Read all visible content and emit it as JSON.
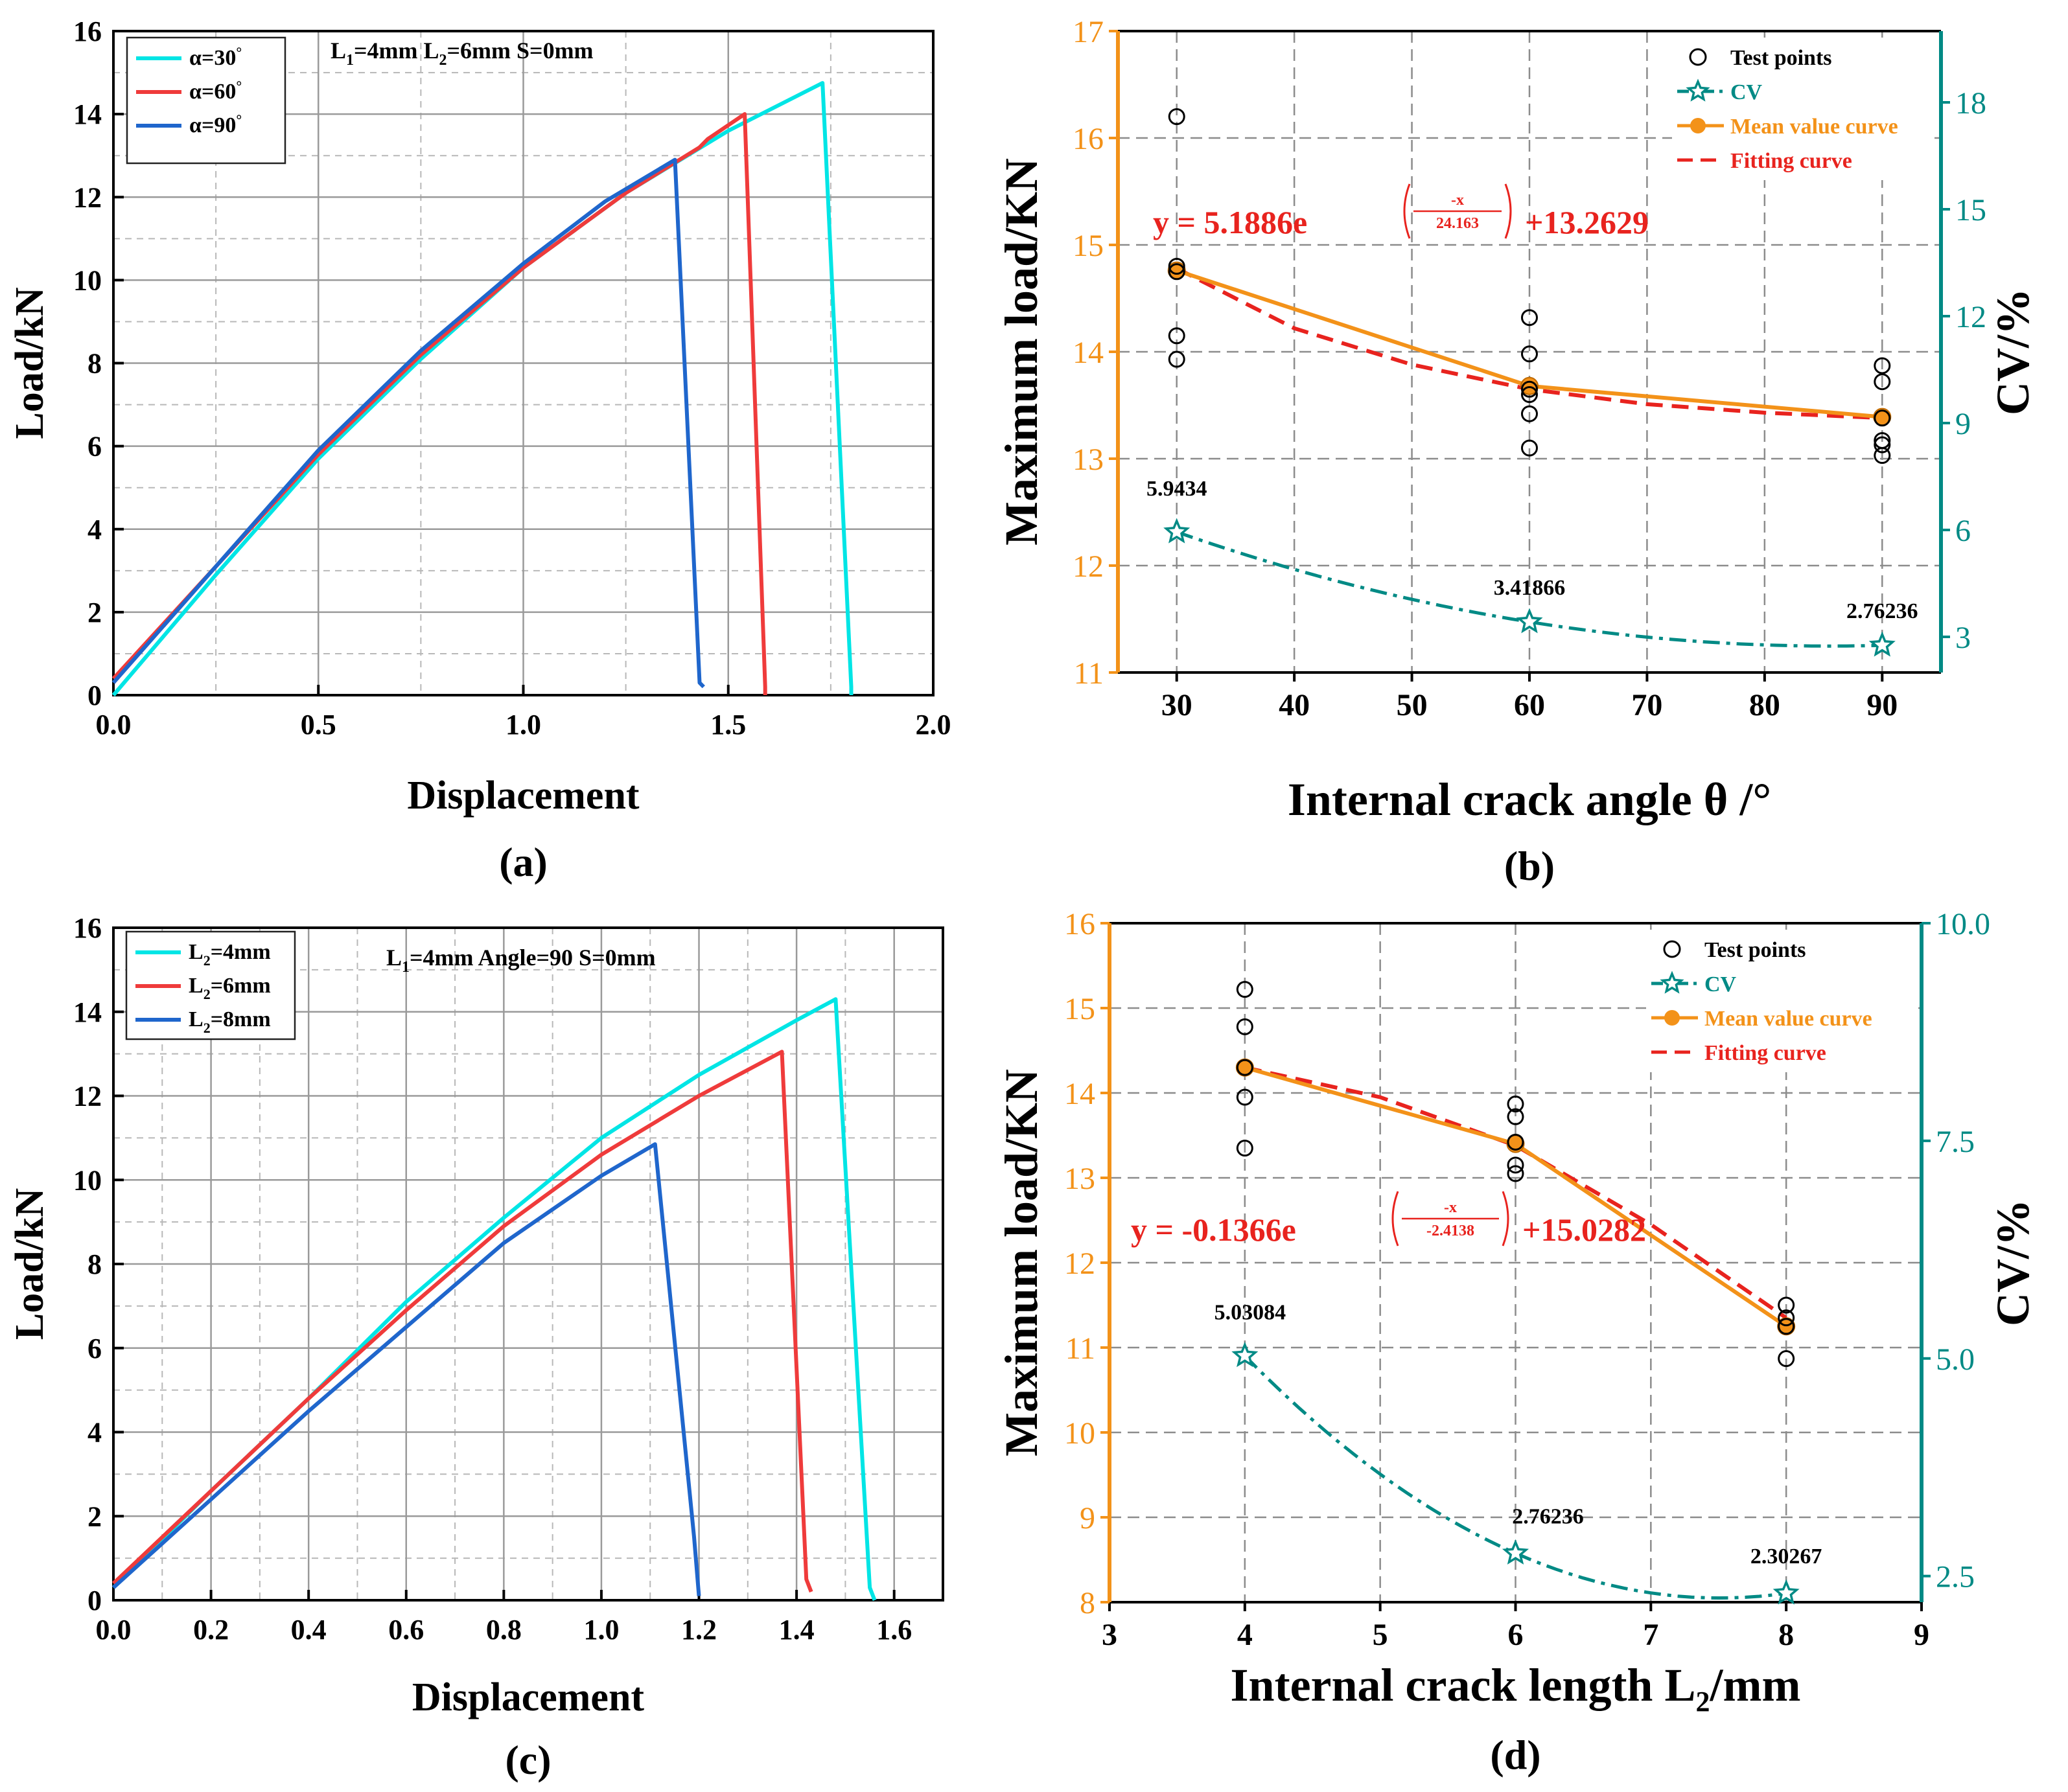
{
  "figure": {
    "width_label": "",
    "panel_labels": [
      "(a)",
      "(b)",
      "(c)",
      "(d)"
    ]
  },
  "chart_data": [
    {
      "type": "line",
      "panel": "(a)",
      "xlabel": "Displacement",
      "ylabel": "Load/kN",
      "xlim": [
        0,
        2.0
      ],
      "ylim": [
        0,
        16
      ],
      "xticks": [
        0,
        0.5,
        1.0,
        1.5,
        2.0
      ],
      "xtick_labels": [
        "0.0",
        "0.5",
        "1.0",
        "1.5",
        "2.0"
      ],
      "yticks": [
        0,
        2,
        4,
        6,
        8,
        10,
        12,
        14,
        16
      ],
      "ytick_labels": [
        "0",
        "2",
        "4",
        "6",
        "8",
        "10",
        "12",
        "14",
        "16"
      ],
      "annotation": {
        "parts": [
          [
            "L",
            "1",
            "=4mm  "
          ],
          [
            "L",
            "2",
            "=6mm  "
          ],
          [
            "S=0mm",
            "",
            ""
          ]
        ]
      },
      "legend": {
        "position": "top-left"
      },
      "series": [
        {
          "name": "α=30°",
          "label_main": "α=30",
          "label_sup": "°",
          "color": "#00E5E5",
          "x": [
            0,
            0.25,
            0.5,
            0.75,
            1.0,
            1.25,
            1.5,
            1.73,
            1.8,
            1.8
          ],
          "y": [
            0,
            2.9,
            5.7,
            8.1,
            10.3,
            12.1,
            13.6,
            14.75,
            0.2,
            0
          ]
        },
        {
          "name": "α=60°",
          "label_main": "α=60",
          "label_sup": "°",
          "color": "#EF3B3B",
          "x": [
            0,
            0.25,
            0.5,
            0.75,
            1.0,
            1.25,
            1.43,
            1.45,
            1.54,
            1.59,
            1.59
          ],
          "y": [
            0.4,
            3.1,
            5.8,
            8.2,
            10.3,
            12.1,
            13.2,
            13.4,
            14.0,
            0.2,
            0
          ]
        },
        {
          "name": "α=90°",
          "label_main": "α=90",
          "label_sup": "°",
          "color": "#1F66CC",
          "x": [
            0,
            0.25,
            0.5,
            0.75,
            1.0,
            1.2,
            1.37,
            1.43,
            1.44
          ],
          "y": [
            0.3,
            3.1,
            5.9,
            8.3,
            10.4,
            11.9,
            12.9,
            0.3,
            0.2
          ]
        }
      ]
    },
    {
      "type": "scatter+line",
      "panel": "(b)",
      "xlabel": "Internal crack angle θ /°",
      "ylabel": "Maximum load/KN",
      "ylabel_right": "CV/%",
      "xlim": [
        25,
        95
      ],
      "ylim": [
        11,
        17
      ],
      "y2lim": [
        2,
        20
      ],
      "xticks": [
        30,
        40,
        50,
        60,
        70,
        80,
        90
      ],
      "yticks": [
        11,
        12,
        13,
        14,
        15,
        16,
        17
      ],
      "y2ticks": [
        3,
        6,
        9,
        12,
        15,
        18
      ],
      "equation": {
        "prefix": "y = 5.1886e",
        "num": "-x",
        "den": "24.163",
        "suffix": "+13.2629"
      },
      "legend": {
        "position": "top-right",
        "entries": [
          "Test points",
          "CV",
          "Mean value curve",
          "Fitting curve"
        ]
      },
      "test_points": [
        {
          "x": 30,
          "y": [
            16.2,
            14.8,
            14.75,
            14.15,
            13.93
          ]
        },
        {
          "x": 60,
          "y": [
            14.32,
            13.98,
            13.65,
            13.6,
            13.42,
            13.1
          ]
        },
        {
          "x": 90,
          "y": [
            13.87,
            13.72,
            13.38,
            13.17,
            13.13,
            13.03
          ]
        }
      ],
      "mean_curve": {
        "x": [
          30,
          60,
          90
        ],
        "y": [
          14.76,
          13.68,
          13.39
        ]
      },
      "fitting_curve": {
        "x": [
          30,
          40,
          50,
          60,
          70,
          80,
          90
        ],
        "y": [
          14.78,
          14.22,
          13.88,
          13.65,
          13.51,
          13.43,
          13.38
        ]
      },
      "cv": {
        "x": [
          30,
          60,
          90
        ],
        "y": [
          5.9434,
          3.41866,
          2.76236
        ],
        "labels": [
          "5.9434",
          "3.41866",
          "2.76236"
        ]
      },
      "colors": {
        "mean": "#F39219",
        "fit": "#E8231E",
        "cv": "#008A85",
        "axis_left": "#F39219",
        "axis_right": "#008A85"
      }
    },
    {
      "type": "line",
      "panel": "(c)",
      "xlabel": "Displacement",
      "ylabel": "Load/kN",
      "xlim": [
        0,
        1.7
      ],
      "ylim": [
        0,
        16
      ],
      "xticks": [
        0,
        0.2,
        0.4,
        0.6,
        0.8,
        1.0,
        1.2,
        1.4,
        1.6
      ],
      "xtick_labels": [
        "0.0",
        "0.2",
        "0.4",
        "0.6",
        "0.8",
        "1.0",
        "1.2",
        "1.4",
        "1.6"
      ],
      "yticks": [
        0,
        2,
        4,
        6,
        8,
        10,
        12,
        14,
        16
      ],
      "ytick_labels": [
        "0",
        "2",
        "4",
        "6",
        "8",
        "10",
        "12",
        "14",
        "16"
      ],
      "annotation": {
        "parts": [
          [
            "L",
            "1",
            "=4mm   "
          ],
          [
            "Angle=90",
            "",
            "   "
          ],
          [
            "S=0mm",
            "",
            ""
          ]
        ]
      },
      "legend": {
        "position": "top-left"
      },
      "series": [
        {
          "name": "L2=4mm",
          "label_main": "L",
          "label_sub": "2",
          "label_rest": "=4mm",
          "color": "#00E5E5",
          "x": [
            0,
            0.2,
            0.4,
            0.6,
            0.8,
            1.0,
            1.2,
            1.4,
            1.48,
            1.55,
            1.56
          ],
          "y": [
            0.3,
            2.6,
            4.8,
            7.1,
            9.1,
            11.0,
            12.5,
            13.8,
            14.3,
            0.3,
            0
          ]
        },
        {
          "name": "L2=6mm",
          "label_main": "L",
          "label_sub": "2",
          "label_rest": "=6mm",
          "color": "#EF3B3B",
          "x": [
            0,
            0.2,
            0.4,
            0.6,
            0.8,
            1.0,
            1.2,
            1.37,
            1.42,
            1.43
          ],
          "y": [
            0.4,
            2.6,
            4.8,
            6.9,
            8.9,
            10.6,
            12.0,
            13.05,
            0.5,
            0.2
          ]
        },
        {
          "name": "L2=8mm",
          "label_main": "L",
          "label_sub": "2",
          "label_rest": "=8mm",
          "color": "#1F66CC",
          "x": [
            0,
            0.2,
            0.4,
            0.6,
            0.8,
            1.0,
            1.11,
            1.19,
            1.2
          ],
          "y": [
            0.3,
            2.4,
            4.5,
            6.5,
            8.5,
            10.1,
            10.85,
            1.5,
            0.1
          ]
        }
      ]
    },
    {
      "type": "scatter+line",
      "panel": "(d)",
      "xlabel": "Internal crack length L",
      "xlabel_sub": "2",
      "xlabel_rest": "/mm",
      "ylabel": "Maximum load/KN",
      "ylabel_right": "CV/%",
      "xlim": [
        3,
        9
      ],
      "ylim": [
        8,
        16
      ],
      "y2lim": [
        2.2,
        10
      ],
      "xticks": [
        3,
        4,
        5,
        6,
        7,
        8,
        9
      ],
      "yticks": [
        8,
        9,
        10,
        11,
        12,
        13,
        14,
        15,
        16
      ],
      "y2ticks": [
        2.5,
        5.0,
        7.5,
        10.0
      ],
      "y2tick_labels": [
        "2.5",
        "5.0",
        "7.5",
        "10.0"
      ],
      "equation": {
        "prefix": "y = -0.1366e",
        "num": "-x",
        "den": "-2.4138",
        "suffix": "+15.0282"
      },
      "legend": {
        "position": "top-right",
        "entries": [
          "Test points",
          "CV",
          "Mean value curve",
          "Fitting curve"
        ]
      },
      "test_points": [
        {
          "x": 4,
          "y": [
            15.22,
            14.78,
            14.3,
            13.95,
            13.35
          ]
        },
        {
          "x": 6,
          "y": [
            13.87,
            13.72,
            13.42,
            13.15,
            13.05
          ]
        },
        {
          "x": 8,
          "y": [
            11.5,
            11.35,
            11.25,
            10.87
          ]
        }
      ],
      "mean_curve": {
        "x": [
          4,
          6,
          8
        ],
        "y": [
          14.3,
          13.4,
          11.25
        ]
      },
      "fitting_curve": {
        "x": [
          4,
          5,
          6,
          7,
          8
        ],
        "y": [
          14.3,
          13.95,
          13.38,
          12.45,
          11.35
        ]
      },
      "cv": {
        "x": [
          4,
          6,
          8
        ],
        "y": [
          5.03084,
          2.76236,
          2.30267
        ],
        "labels": [
          "5.03084",
          "2.76236",
          "2.30267"
        ]
      },
      "colors": {
        "mean": "#F39219",
        "fit": "#E8231E",
        "cv": "#008A85",
        "axis_left": "#F39219",
        "axis_right": "#008A85"
      }
    }
  ]
}
